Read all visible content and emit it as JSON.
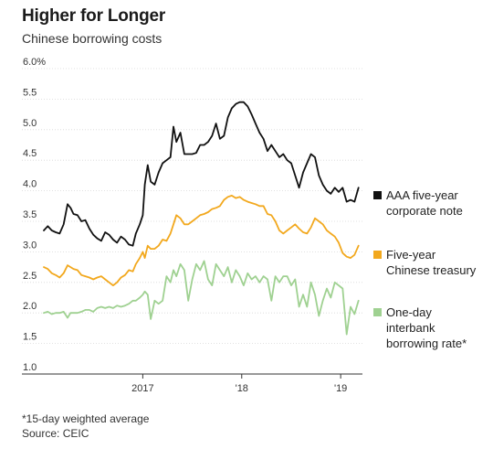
{
  "header": {
    "title": "Higher for Longer",
    "subtitle": "Chinese borrowing costs"
  },
  "footer": {
    "footnote": "*15-day weighted average",
    "source": "Source: CEIC"
  },
  "colors": {
    "corporate": "#111111",
    "treasury": "#f2a81d",
    "interbank": "#9fd191",
    "grid": "#d7d7d7",
    "axis": "#333333"
  },
  "chart_data": {
    "type": "line",
    "title": "Higher for Longer",
    "subtitle": "Chinese borrowing costs",
    "xlabel": "",
    "ylabel": "",
    "ylim": [
      1.0,
      6.0
    ],
    "y_ticks": [
      1.0,
      1.5,
      2.0,
      2.5,
      3.0,
      3.5,
      4.0,
      4.5,
      5.0,
      5.5,
      6.0
    ],
    "y_tick_labels": [
      "1.0",
      "1.5",
      "2.0",
      "2.5",
      "3.0",
      "3.5",
      "4.0",
      "4.5",
      "5.0",
      "5.5",
      "6.0%"
    ],
    "xlim": [
      2016.0,
      2019.22
    ],
    "x_ticks": [
      2017,
      2018,
      2019
    ],
    "x_tick_labels": [
      "2017",
      "'18",
      "'19"
    ],
    "grid": "horizontal",
    "legend_position": "right",
    "series": [
      {
        "name": "AAA five-year corporate note",
        "legend_lines": [
          "AAA five-year",
          "corporate note"
        ],
        "color": "#111111",
        "x": [
          2016.0,
          2016.04,
          2016.08,
          2016.12,
          2016.16,
          2016.2,
          2016.24,
          2016.27,
          2016.3,
          2016.34,
          2016.38,
          2016.42,
          2016.46,
          2016.5,
          2016.54,
          2016.58,
          2016.62,
          2016.66,
          2016.7,
          2016.74,
          2016.78,
          2016.82,
          2016.86,
          2016.9,
          2016.93,
          2016.97,
          2017.0,
          2017.02,
          2017.05,
          2017.08,
          2017.12,
          2017.16,
          2017.2,
          2017.24,
          2017.28,
          2017.31,
          2017.34,
          2017.38,
          2017.42,
          2017.46,
          2017.5,
          2017.54,
          2017.58,
          2017.62,
          2017.66,
          2017.7,
          2017.74,
          2017.78,
          2017.82,
          2017.86,
          2017.9,
          2017.94,
          2017.98,
          2018.02,
          2018.06,
          2018.1,
          2018.14,
          2018.18,
          2018.22,
          2018.26,
          2018.3,
          2018.34,
          2018.38,
          2018.42,
          2018.46,
          2018.5,
          2018.54,
          2018.58,
          2018.62,
          2018.66,
          2018.7,
          2018.74,
          2018.78,
          2018.82,
          2018.86,
          2018.9,
          2018.94,
          2018.98,
          2019.02,
          2019.06,
          2019.1,
          2019.14,
          2019.18
        ],
        "values": [
          3.35,
          3.42,
          3.35,
          3.32,
          3.3,
          3.45,
          3.78,
          3.72,
          3.62,
          3.6,
          3.5,
          3.52,
          3.38,
          3.28,
          3.22,
          3.18,
          3.32,
          3.28,
          3.2,
          3.15,
          3.25,
          3.2,
          3.12,
          3.1,
          3.3,
          3.45,
          3.6,
          4.1,
          4.42,
          4.15,
          4.1,
          4.3,
          4.45,
          4.5,
          4.55,
          5.05,
          4.8,
          4.95,
          4.6,
          4.6,
          4.6,
          4.62,
          4.75,
          4.75,
          4.8,
          4.9,
          5.1,
          4.85,
          4.9,
          5.2,
          5.35,
          5.42,
          5.45,
          5.45,
          5.38,
          5.25,
          5.1,
          4.95,
          4.85,
          4.65,
          4.75,
          4.65,
          4.55,
          4.6,
          4.5,
          4.45,
          4.25,
          4.05,
          4.3,
          4.45,
          4.6,
          4.55,
          4.25,
          4.1,
          4.0,
          3.95,
          4.05,
          3.98,
          4.05,
          3.82,
          3.85,
          3.82,
          4.05
        ]
      },
      {
        "name": "Five-year Chinese treasury",
        "legend_lines": [
          "Five-year",
          "Chinese treasury"
        ],
        "color": "#f2a81d",
        "x": [
          2016.0,
          2016.04,
          2016.08,
          2016.12,
          2016.16,
          2016.2,
          2016.24,
          2016.27,
          2016.3,
          2016.34,
          2016.38,
          2016.42,
          2016.46,
          2016.5,
          2016.54,
          2016.58,
          2016.62,
          2016.66,
          2016.7,
          2016.74,
          2016.78,
          2016.82,
          2016.86,
          2016.9,
          2016.93,
          2016.97,
          2017.0,
          2017.02,
          2017.05,
          2017.08,
          2017.12,
          2017.16,
          2017.2,
          2017.24,
          2017.28,
          2017.31,
          2017.34,
          2017.38,
          2017.42,
          2017.46,
          2017.5,
          2017.54,
          2017.58,
          2017.62,
          2017.66,
          2017.7,
          2017.74,
          2017.78,
          2017.82,
          2017.86,
          2017.9,
          2017.94,
          2017.98,
          2018.02,
          2018.06,
          2018.1,
          2018.14,
          2018.18,
          2018.22,
          2018.26,
          2018.3,
          2018.34,
          2018.38,
          2018.42,
          2018.46,
          2018.5,
          2018.54,
          2018.58,
          2018.62,
          2018.66,
          2018.7,
          2018.74,
          2018.78,
          2018.82,
          2018.86,
          2018.9,
          2018.94,
          2018.98,
          2019.02,
          2019.06,
          2019.1,
          2019.14,
          2019.18
        ],
        "values": [
          2.75,
          2.72,
          2.65,
          2.62,
          2.58,
          2.65,
          2.78,
          2.75,
          2.72,
          2.7,
          2.62,
          2.6,
          2.58,
          2.55,
          2.58,
          2.6,
          2.55,
          2.5,
          2.45,
          2.5,
          2.58,
          2.62,
          2.7,
          2.68,
          2.8,
          2.9,
          3.0,
          2.9,
          3.1,
          3.05,
          3.05,
          3.1,
          3.2,
          3.18,
          3.3,
          3.45,
          3.6,
          3.55,
          3.45,
          3.45,
          3.5,
          3.55,
          3.6,
          3.62,
          3.65,
          3.7,
          3.72,
          3.75,
          3.85,
          3.9,
          3.92,
          3.88,
          3.9,
          3.85,
          3.82,
          3.8,
          3.78,
          3.75,
          3.75,
          3.62,
          3.6,
          3.5,
          3.35,
          3.3,
          3.35,
          3.4,
          3.45,
          3.38,
          3.32,
          3.3,
          3.4,
          3.55,
          3.5,
          3.45,
          3.35,
          3.3,
          3.25,
          3.15,
          2.98,
          2.92,
          2.9,
          2.95,
          3.1
        ]
      },
      {
        "name": "One-day interbank borrowing rate*",
        "legend_lines": [
          "One-day",
          "interbank",
          "borrowing rate*"
        ],
        "color": "#9fd191",
        "x": [
          2016.0,
          2016.04,
          2016.08,
          2016.12,
          2016.16,
          2016.2,
          2016.24,
          2016.27,
          2016.3,
          2016.34,
          2016.38,
          2016.42,
          2016.46,
          2016.5,
          2016.54,
          2016.58,
          2016.62,
          2016.66,
          2016.7,
          2016.74,
          2016.78,
          2016.82,
          2016.86,
          2016.9,
          2016.93,
          2016.97,
          2017.0,
          2017.02,
          2017.05,
          2017.08,
          2017.12,
          2017.16,
          2017.2,
          2017.24,
          2017.28,
          2017.31,
          2017.34,
          2017.38,
          2017.42,
          2017.46,
          2017.5,
          2017.54,
          2017.58,
          2017.62,
          2017.66,
          2017.7,
          2017.74,
          2017.78,
          2017.82,
          2017.86,
          2017.9,
          2017.94,
          2017.98,
          2018.02,
          2018.06,
          2018.1,
          2018.14,
          2018.18,
          2018.22,
          2018.26,
          2018.3,
          2018.34,
          2018.38,
          2018.42,
          2018.46,
          2018.5,
          2018.54,
          2018.58,
          2018.62,
          2018.66,
          2018.7,
          2018.74,
          2018.78,
          2018.82,
          2018.86,
          2018.9,
          2018.94,
          2018.98,
          2019.02,
          2019.06,
          2019.1,
          2019.14,
          2019.18
        ],
        "values": [
          2.0,
          2.02,
          1.98,
          2.0,
          2.0,
          2.02,
          1.92,
          2.0,
          2.0,
          2.0,
          2.02,
          2.05,
          2.05,
          2.02,
          2.08,
          2.1,
          2.08,
          2.1,
          2.08,
          2.12,
          2.1,
          2.12,
          2.15,
          2.2,
          2.2,
          2.25,
          2.3,
          2.35,
          2.3,
          1.9,
          2.2,
          2.15,
          2.2,
          2.6,
          2.5,
          2.7,
          2.6,
          2.8,
          2.7,
          2.2,
          2.55,
          2.8,
          2.7,
          2.85,
          2.55,
          2.45,
          2.8,
          2.7,
          2.6,
          2.75,
          2.5,
          2.7,
          2.6,
          2.45,
          2.65,
          2.55,
          2.6,
          2.5,
          2.6,
          2.55,
          2.2,
          2.6,
          2.5,
          2.6,
          2.6,
          2.45,
          2.55,
          2.1,
          2.3,
          2.1,
          2.5,
          2.3,
          1.95,
          2.2,
          2.4,
          2.25,
          2.5,
          2.45,
          2.4,
          1.65,
          2.1,
          1.98,
          2.2
        ]
      }
    ]
  }
}
